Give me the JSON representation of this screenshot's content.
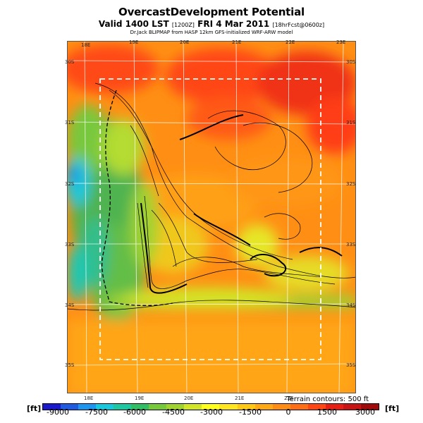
{
  "header": {
    "title": "OvercastDevelopment Potential",
    "subtitle_main": "Valid 1400 LST",
    "subtitle_code1": "[1200Z]",
    "subtitle_date": "FRI 4 Mar 2011",
    "subtitle_code2": "[18hrFcst@0600z]",
    "credit": "Dr.Jack BLIPMAP from HASP 12km GFS-initialized WRF-ARW model"
  },
  "map": {
    "top_lon_labels": [
      "18E",
      "19E",
      "20E",
      "21E",
      "22E",
      "23E"
    ],
    "bottom_lon_labels": [
      "18E",
      "19E",
      "20E",
      "21E",
      "22E"
    ],
    "left_lat_labels": [
      "30S",
      "31S",
      "32S",
      "33S",
      "34S",
      "35S"
    ],
    "right_lat_labels": [
      "30S",
      "31S",
      "32S",
      "33S",
      "34S",
      "35S"
    ],
    "terrain_note": "Terrain contours: 500 ft"
  },
  "colorbar": {
    "unit": "[ft]",
    "labels": [
      "-9000",
      "-7500",
      "-6000",
      "-4500",
      "-3000",
      "-1500",
      "0",
      "1500",
      "3000"
    ],
    "colors": [
      "#1a1acc",
      "#1f5ae0",
      "#1e96f0",
      "#19c8dc",
      "#1ec8a0",
      "#32be64",
      "#78c83c",
      "#a0d232",
      "#d2e628",
      "#ffff1e",
      "#ffe61e",
      "#ffc814",
      "#ffaa14",
      "#ff8c14",
      "#ff6e14",
      "#ff4614",
      "#e61e14",
      "#c81414",
      "#a00a0a"
    ]
  }
}
